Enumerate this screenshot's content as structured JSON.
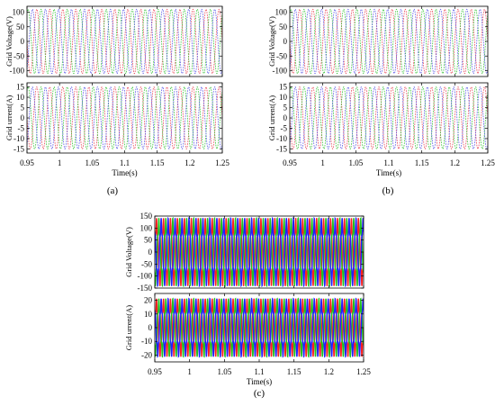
{
  "chart_data": [
    {
      "type": "line",
      "panel_label": "(a)",
      "xlabel": "Time(s)",
      "x_ticks": [
        "0.95",
        "1",
        "1.05",
        "1.1",
        "1.15",
        "1.2",
        "1.25"
      ],
      "xlim": [
        0.95,
        1.25
      ],
      "fundamental_hz": 50,
      "phase_colors": [
        "#e8495a",
        "#3bc43b",
        "#5a5ae6"
      ],
      "subplots": [
        {
          "ylabel": "Grid Voltage(V)",
          "y_ticks": [
            "100",
            "50",
            "0",
            "-50",
            "-100"
          ],
          "ylim": [
            -120,
            120
          ],
          "grid": false,
          "series": [
            {
              "amplitude": 110,
              "phase_deg": 0
            },
            {
              "amplitude": 110,
              "phase_deg": -120
            },
            {
              "amplitude": 110,
              "phase_deg": 120
            }
          ]
        },
        {
          "ylabel": "Grid urrent(A)",
          "y_ticks": [
            "15",
            "10",
            "5",
            "0",
            "-5",
            "-10",
            "-15"
          ],
          "ylim": [
            -17,
            17
          ],
          "grid": false,
          "series": [
            {
              "amplitude": 15,
              "phase_deg": 0
            },
            {
              "amplitude": 15,
              "phase_deg": -120
            },
            {
              "amplitude": 15,
              "phase_deg": 120
            }
          ]
        }
      ]
    },
    {
      "type": "line",
      "panel_label": "(b)",
      "xlabel": "Time(s)",
      "x_ticks": [
        "0.95",
        "1",
        "1.05",
        "1.1",
        "1.15",
        "1.2",
        "1.25"
      ],
      "xlim": [
        0.95,
        1.25
      ],
      "fundamental_hz": 50,
      "phase_colors": [
        "#e8495a",
        "#3bc43b",
        "#5a5ae6"
      ],
      "subplots": [
        {
          "ylabel": "Grid Voltage(V)",
          "y_ticks": [
            "100",
            "50",
            "0",
            "-50",
            "-100"
          ],
          "ylim": [
            -120,
            120
          ],
          "grid": false,
          "series": [
            {
              "amplitude": 110,
              "phase_deg": 0
            },
            {
              "amplitude": 110,
              "phase_deg": -120
            },
            {
              "amplitude": 110,
              "phase_deg": 120
            }
          ]
        },
        {
          "ylabel": "Grid urrent(A)",
          "y_ticks": [
            "15",
            "10",
            "5",
            "0",
            "-5",
            "-10",
            "-15"
          ],
          "ylim": [
            -17,
            17
          ],
          "grid": false,
          "series": [
            {
              "amplitude": 15,
              "phase_deg": 0
            },
            {
              "amplitude": 15,
              "phase_deg": -120
            },
            {
              "amplitude": 15,
              "phase_deg": 120
            }
          ]
        }
      ]
    },
    {
      "type": "line",
      "panel_label": "(c)",
      "xlabel": "Time(s)",
      "x_ticks": [
        "0.95",
        "1",
        "1.05",
        "1.1",
        "1.15",
        "1.2",
        "1.25"
      ],
      "xlim": [
        0.95,
        1.25
      ],
      "fundamental_hz": 100,
      "phase_colors": [
        "#ff2020",
        "#20c020",
        "#2020ff"
      ],
      "subplots": [
        {
          "ylabel": "Grid Voltage(V)",
          "y_ticks": [
            "150",
            "100",
            "50",
            "0",
            "-50",
            "-100",
            "-150"
          ],
          "ylim": [
            -150,
            150
          ],
          "grid": false,
          "distortion": {
            "harmonic_order": 5,
            "relative_amplitude": 0.18
          },
          "series": [
            {
              "amplitude": 120,
              "phase_deg": 0
            },
            {
              "amplitude": 120,
              "phase_deg": -120
            },
            {
              "amplitude": 120,
              "phase_deg": 120
            }
          ]
        },
        {
          "ylabel": "Grid urrent(A)",
          "y_ticks": [
            "20",
            "10",
            "0",
            "-10",
            "-20"
          ],
          "ylim": [
            -25,
            25
          ],
          "grid": false,
          "distortion": {
            "harmonic_order": 5,
            "relative_amplitude": 0.18
          },
          "series": [
            {
              "amplitude": 18,
              "phase_deg": 0
            },
            {
              "amplitude": 18,
              "phase_deg": -120
            },
            {
              "amplitude": 18,
              "phase_deg": 120
            }
          ]
        }
      ]
    }
  ]
}
